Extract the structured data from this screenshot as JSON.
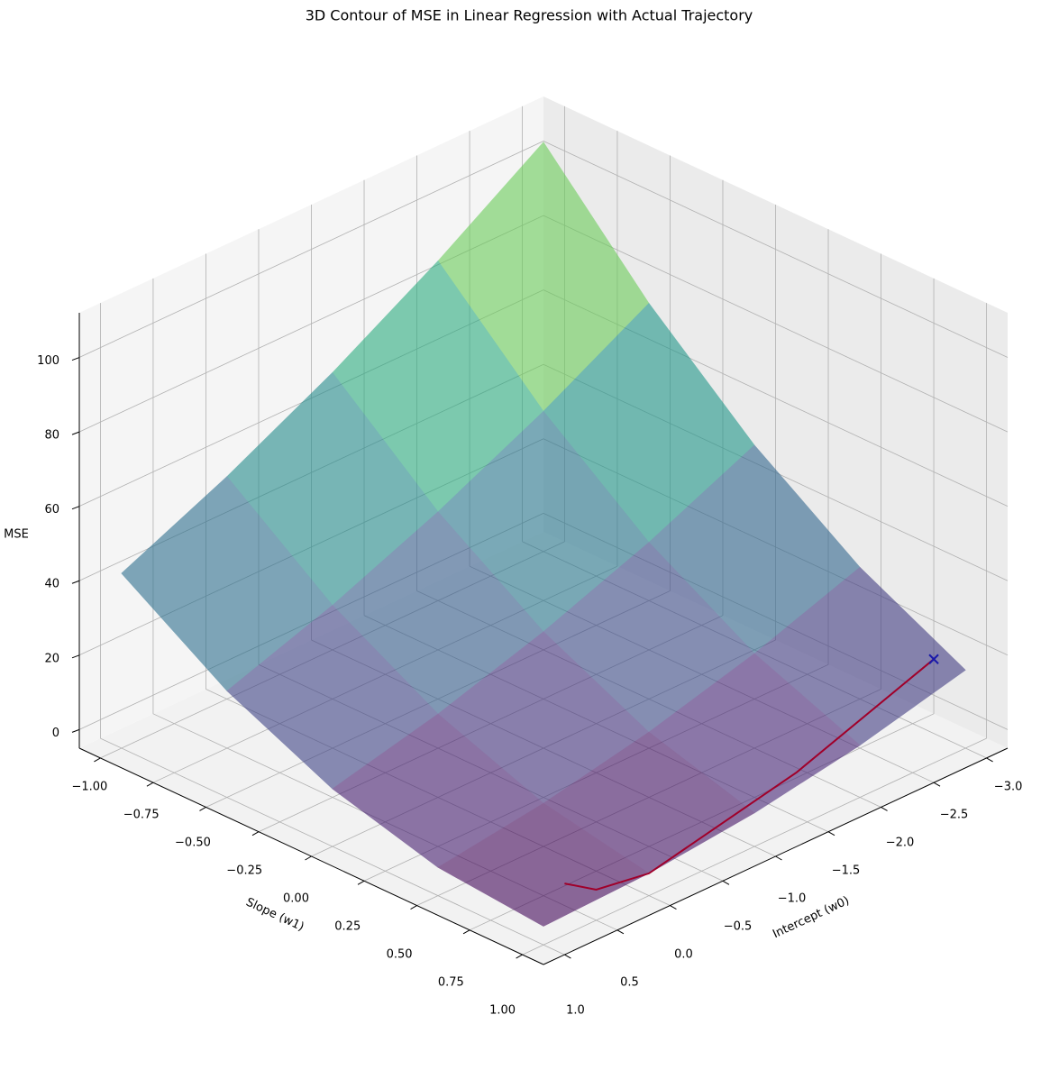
{
  "chart_data": {
    "type": "surface3d",
    "title": "3D Contour of MSE in Linear Regression with Actual Trajectory",
    "x_label": "Intercept (w0)",
    "y_label": "Slope (w1)",
    "z_label": "MSE",
    "xlim": [
      -3.2,
      1.2
    ],
    "ylim": [
      -1.1,
      1.1
    ],
    "zlim": [
      -5,
      112
    ],
    "xticks": [
      {
        "value": -3.0,
        "label": "−3.0"
      },
      {
        "value": -2.5,
        "label": "−2.5"
      },
      {
        "value": -2.0,
        "label": "−2.0"
      },
      {
        "value": -1.5,
        "label": "−1.5"
      },
      {
        "value": -1.0,
        "label": "−1.0"
      },
      {
        "value": -0.5,
        "label": "−0.5"
      },
      {
        "value": 0.0,
        "label": "0.0"
      },
      {
        "value": 0.5,
        "label": "0.5"
      },
      {
        "value": 1.0,
        "label": "1.0"
      }
    ],
    "yticks": [
      {
        "value": -1.0,
        "label": "−1.00"
      },
      {
        "value": -0.75,
        "label": "−0.75"
      },
      {
        "value": -0.5,
        "label": "−0.50"
      },
      {
        "value": -0.25,
        "label": "−0.25"
      },
      {
        "value": 0.0,
        "label": "0.00"
      },
      {
        "value": 0.25,
        "label": "0.25"
      },
      {
        "value": 0.5,
        "label": "0.50"
      },
      {
        "value": 0.75,
        "label": "0.75"
      },
      {
        "value": 1.0,
        "label": "1.00"
      }
    ],
    "zticks": [
      0,
      20,
      40,
      60,
      80,
      100
    ],
    "grid": true,
    "surface": {
      "w0": [
        -3,
        -2,
        -1,
        0,
        1
      ],
      "w1": [
        -1,
        -0.5,
        0,
        0.5,
        1
      ],
      "z": [
        [
          105.0,
          74.9,
          50.0,
          30.4,
          16
        ],
        [
          86.3,
          59.1,
          37.1,
          20.4,
          9
        ],
        [
          69.5,
          45.3,
          26.3,
          12.5,
          4
        ],
        [
          54.8,
          33.4,
          17.4,
          6.6,
          1
        ],
        [
          42,
          23.6,
          10.5,
          2.6,
          0
        ]
      ],
      "colormap": "viridis",
      "alpha": 0.6
    },
    "trajectory": {
      "w0": [
        -2.9,
        -1.5,
        0,
        0.4,
        0.5
      ],
      "w1": [
        0.9,
        0.95,
        1.0,
        0.95,
        0.85
      ],
      "mse": [
        17.6,
        7.0,
        1,
        0.56,
        0.93
      ],
      "color": "#a0002a",
      "marker_color": "#1a1aaa"
    }
  }
}
